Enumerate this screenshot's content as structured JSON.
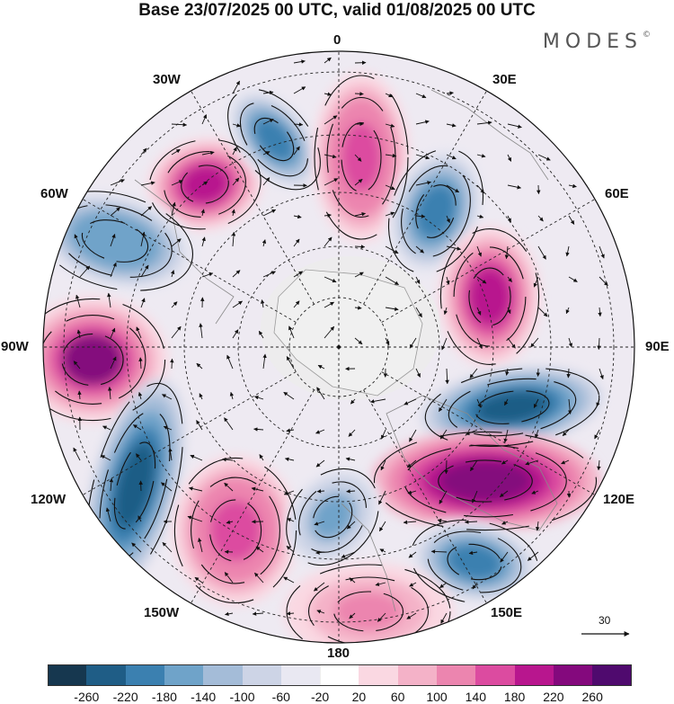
{
  "header": {
    "title": "Base 23/07/2025 00 UTC, valid 01/08/2025 00 UTC",
    "brand": "MODES",
    "brand_mark": "©"
  },
  "map": {
    "projection": "north-polar-stereographic",
    "longitude_labels": {
      "lon_0": "0",
      "lon_30e": "30E",
      "lon_60e": "60E",
      "lon_90e": "90E",
      "lon_120e": "120E",
      "lon_150e": "150E",
      "lon_180": "180",
      "lon_150w": "150W",
      "lon_120w": "120W",
      "lon_90w": "90W",
      "lon_60w": "60W",
      "lon_30w": "30W"
    },
    "anomaly_centers": [
      {
        "name": "central-atlantic-high",
        "sign": "positive",
        "peak": 180
      },
      {
        "name": "north-atlantic-low",
        "sign": "negative",
        "peak": -220
      },
      {
        "name": "europe-high",
        "sign": "positive",
        "peak": 160
      },
      {
        "name": "scandinavia-low",
        "sign": "negative",
        "peak": -220
      },
      {
        "name": "labrador-low",
        "sign": "negative",
        "peak": -180
      },
      {
        "name": "north-pacific-east-high",
        "sign": "positive",
        "peak": 220
      },
      {
        "name": "west-russia-high",
        "sign": "positive",
        "peak": 180
      },
      {
        "name": "siberia-low",
        "sign": "negative",
        "peak": -260
      },
      {
        "name": "far-east-high",
        "sign": "positive",
        "peak": 240
      },
      {
        "name": "east-pacific-low",
        "sign": "negative",
        "peak": -260
      },
      {
        "name": "alaska-gulf-high",
        "sign": "positive",
        "peak": 160
      },
      {
        "name": "bering-low",
        "sign": "negative",
        "peak": -160
      },
      {
        "name": "kamchatka-low",
        "sign": "negative",
        "peak": -220
      },
      {
        "name": "north-pacific-high",
        "sign": "positive",
        "peak": 120
      }
    ]
  },
  "reference_vector": {
    "label": "30"
  },
  "legend": {
    "levels": [
      "-260",
      "-220",
      "-180",
      "-140",
      "-100",
      "-60",
      "-20",
      "20",
      "60",
      "100",
      "140",
      "180",
      "220",
      "260"
    ],
    "colors": [
      "#16374f",
      "#1f5d86",
      "#3b80b0",
      "#6fa3c9",
      "#a4bcd8",
      "#cdd4e6",
      "#e9e8f2",
      "#ffffff",
      "#fad8e2",
      "#f4b2c8",
      "#ec85af",
      "#dc4ba0",
      "#b8168e",
      "#84097d",
      "#4f0a6e"
    ]
  }
}
